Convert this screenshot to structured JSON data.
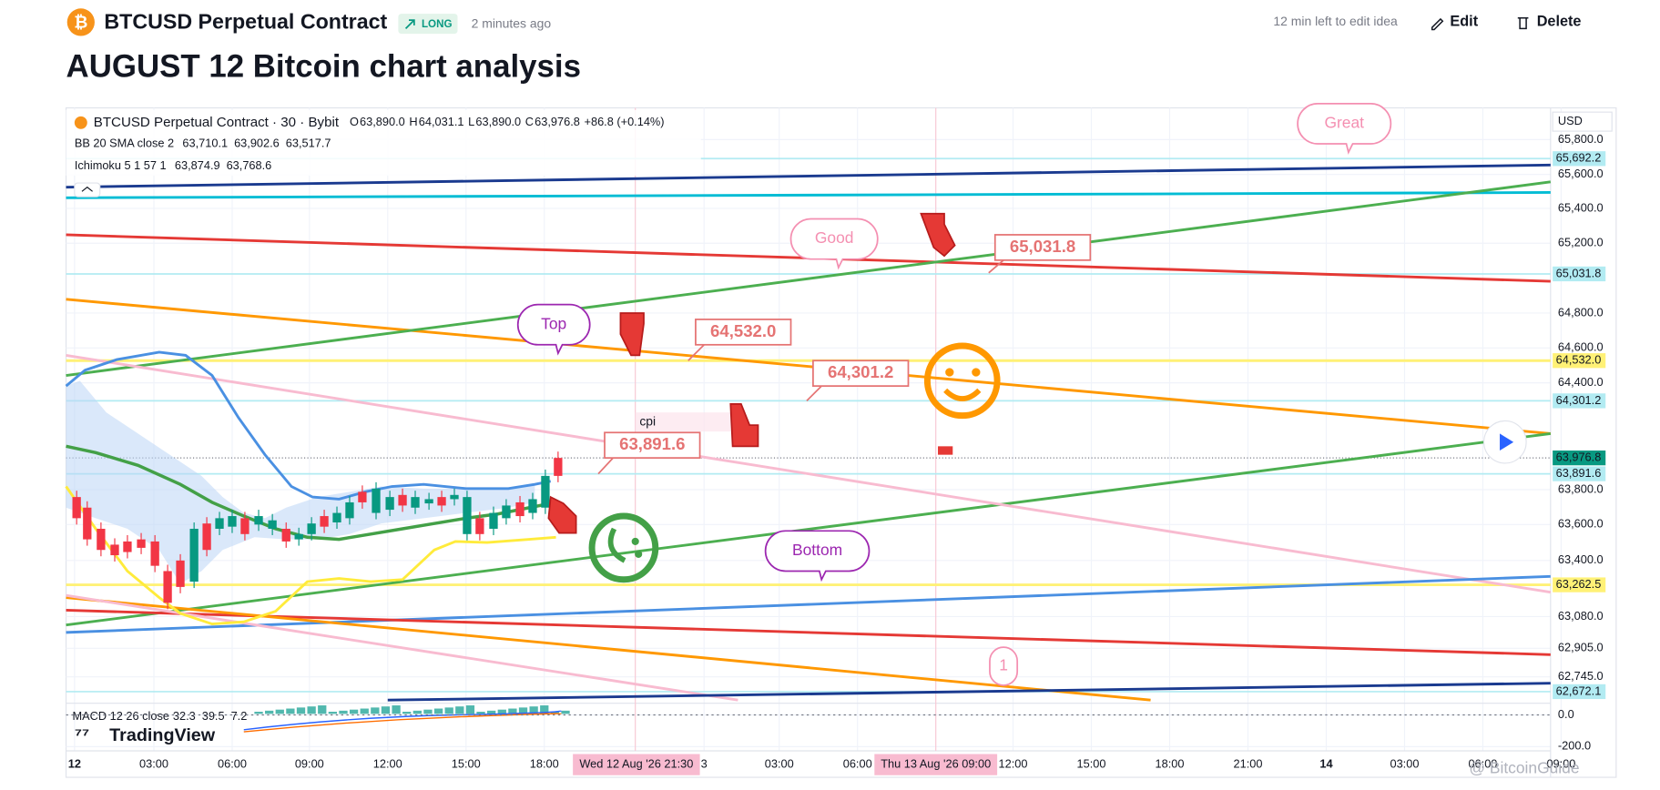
{
  "header": {
    "symbol": "BTCUSD Perpetual Contract",
    "badge": "LONG",
    "time": "2 minutes ago",
    "edit_note": "12 min left to edit idea",
    "edit": "Edit",
    "delete": "Delete"
  },
  "title": "AUGUST 12 Bitcoin chart analysis",
  "chart": {
    "legend": {
      "symbol": "BTCUSD Perpetual Contract · 30 · Bybit",
      "ohlc": [
        {
          "key": "O",
          "value": "63,890.0"
        },
        {
          "key": "H",
          "value": "64,031.1"
        },
        {
          "key": "L",
          "value": "63,890.0"
        },
        {
          "key": "C",
          "value": "63,976.8"
        }
      ],
      "change": "+86.8 (+0.14%)"
    },
    "indicators": [
      {
        "name": "BB 20 SMA close 2",
        "values": [
          "63,710.1",
          "63,902.6",
          "63,517.7"
        ]
      },
      {
        "name": "Ichimoku 5 1 57 1",
        "values": [
          "63,874.9",
          "63,768.6"
        ]
      }
    ],
    "currency": "USD",
    "price_axis": [
      "65,800.0",
      "65,600.0",
      "65,400.0",
      "65,200.0",
      "64,800.0",
      "64,600.0",
      "64,400.0",
      "63,800.0",
      "63,600.0",
      "63,400.0",
      "63,080.0",
      "62,905.0",
      "62,745.0",
      "0.0",
      "-200.0"
    ],
    "price_tags": [
      "65,692.2",
      "65,031.8",
      "64,532.0",
      "64,301.2",
      "63,976.8",
      "63,891.6",
      "63,262.5",
      "62,672.1"
    ],
    "time_axis": [
      "12",
      "03:00",
      "06:00",
      "09:00",
      "12:00",
      "15:00",
      "18:00",
      "3",
      "03:00",
      "06:00",
      "12:00",
      "15:00",
      "18:00",
      "21:00",
      "14",
      "03:00",
      "06:00",
      "09:00"
    ],
    "time_tags": [
      "Wed 12 Aug '26  21:30",
      "Thu 13 Aug '26  09:00"
    ],
    "annotations": [
      "Great",
      "Good",
      "Top",
      "Bottom",
      "cpi",
      "1"
    ],
    "price_notes": [
      "65,031.8",
      "64,532.0",
      "64,301.2",
      "63,891.6"
    ],
    "macd": {
      "label": "MACD 12 26 close",
      "values": [
        "32.3",
        "39.5",
        "7.2"
      ]
    },
    "brand": "TradingView",
    "watermark": "@ BitcoinGuide"
  }
}
